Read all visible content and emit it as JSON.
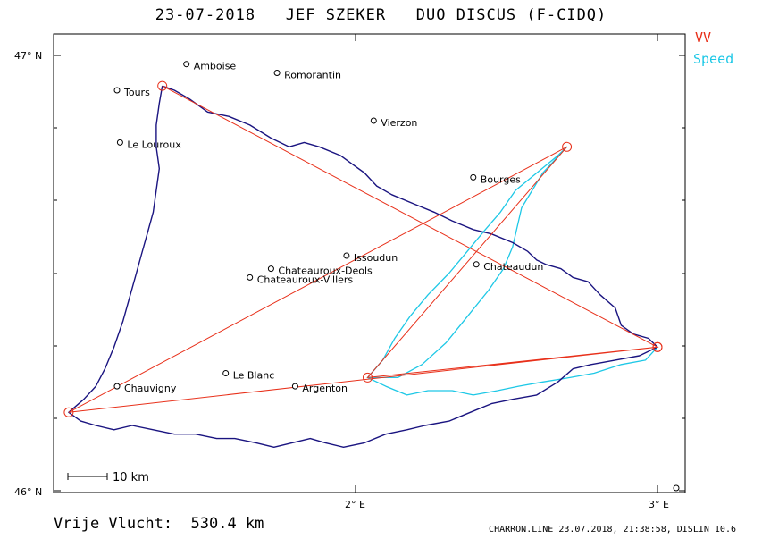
{
  "header": {
    "title": "23-07-2018   JEF SZEKER   DUO DISCUS (F-CIDQ)"
  },
  "legend": [
    {
      "label": "VV",
      "color": "#e8301a"
    },
    {
      "label": "Speed",
      "color": "#1ec8e6"
    }
  ],
  "axes": {
    "lat_top": "47° N",
    "lat_bottom": "46° N",
    "lon_2e": "2° E",
    "lon_3e": "3° E"
  },
  "scale_bar": {
    "label": "10 km"
  },
  "footer": {
    "distance": "Vrije Vlucht:  530.4 km",
    "info": "CHARRON.LINE 23.07.2018, 21:38:58, DISLIN 10.6"
  },
  "places": [
    {
      "name": "Amboise",
      "lon": 1.44,
      "lat": 46.98
    },
    {
      "name": "Romorantin",
      "lon": 1.74,
      "lat": 46.96
    },
    {
      "name": "Tours",
      "lon": 1.21,
      "lat": 46.92
    },
    {
      "name": "Vierzon",
      "lon": 2.06,
      "lat": 46.85
    },
    {
      "name": "Le Louroux",
      "lon": 1.22,
      "lat": 46.8
    },
    {
      "name": "Bourges",
      "lon": 2.39,
      "lat": 46.72
    },
    {
      "name": "Issoudun",
      "lon": 1.97,
      "lat": 46.54
    },
    {
      "name": "Chateaudun",
      "lon": 2.4,
      "lat": 46.52
    },
    {
      "name": "Chateauroux-Deols",
      "lon": 1.72,
      "lat": 46.51
    },
    {
      "name": "Chateauroux-Villers",
      "lon": 1.65,
      "lat": 46.49
    },
    {
      "name": "Le Blanc",
      "lon": 1.57,
      "lat": 46.27
    },
    {
      "name": "Argenton",
      "lon": 1.8,
      "lat": 46.24
    },
    {
      "name": "Chauvigny",
      "lon": 1.21,
      "lat": 46.24
    }
  ],
  "task": {
    "color": "#e8301a",
    "turnpoints": [
      {
        "lon": 1.36,
        "lat": 46.93
      },
      {
        "lon": 3.0,
        "lat": 46.33
      },
      {
        "lon": 1.05,
        "lat": 46.18
      },
      {
        "lon": 2.7,
        "lat": 46.79
      },
      {
        "lon": 2.04,
        "lat": 46.26
      },
      {
        "lon": 3.0,
        "lat": 46.33
      }
    ]
  },
  "tracks": {
    "main": {
      "color": "#1a1480",
      "points": [
        [
          1.36,
          46.93
        ],
        [
          1.4,
          46.92
        ],
        [
          1.45,
          46.9
        ],
        [
          1.51,
          46.87
        ],
        [
          1.58,
          46.86
        ],
        [
          1.65,
          46.84
        ],
        [
          1.72,
          46.81
        ],
        [
          1.78,
          46.79
        ],
        [
          1.83,
          46.8
        ],
        [
          1.88,
          46.79
        ],
        [
          1.95,
          46.77
        ],
        [
          1.99,
          46.75
        ],
        [
          2.03,
          46.73
        ],
        [
          2.07,
          46.7
        ],
        [
          2.12,
          46.68
        ],
        [
          2.19,
          46.66
        ],
        [
          2.26,
          46.64
        ],
        [
          2.32,
          46.62
        ],
        [
          2.39,
          46.6
        ],
        [
          2.45,
          46.59
        ],
        [
          2.52,
          46.57
        ],
        [
          2.57,
          46.55
        ],
        [
          2.6,
          46.53
        ],
        [
          2.63,
          46.52
        ],
        [
          2.68,
          46.51
        ],
        [
          2.72,
          46.49
        ],
        [
          2.77,
          46.48
        ],
        [
          2.81,
          46.45
        ],
        [
          2.86,
          46.42
        ],
        [
          2.88,
          46.38
        ],
        [
          2.92,
          46.36
        ],
        [
          2.97,
          46.35
        ],
        [
          3.0,
          46.33
        ],
        [
          2.94,
          46.31
        ],
        [
          2.86,
          46.3
        ],
        [
          2.78,
          46.29
        ],
        [
          2.72,
          46.28
        ],
        [
          2.67,
          46.25
        ],
        [
          2.6,
          46.22
        ],
        [
          2.52,
          46.21
        ],
        [
          2.45,
          46.2
        ],
        [
          2.38,
          46.18
        ],
        [
          2.31,
          46.16
        ],
        [
          2.23,
          46.15
        ],
        [
          2.17,
          46.14
        ],
        [
          2.1,
          46.13
        ],
        [
          2.03,
          46.11
        ],
        [
          1.96,
          46.1
        ],
        [
          1.9,
          46.11
        ],
        [
          1.85,
          46.12
        ],
        [
          1.79,
          46.11
        ],
        [
          1.73,
          46.1
        ],
        [
          1.67,
          46.11
        ],
        [
          1.6,
          46.12
        ],
        [
          1.54,
          46.12
        ],
        [
          1.47,
          46.13
        ],
        [
          1.4,
          46.13
        ],
        [
          1.33,
          46.14
        ],
        [
          1.26,
          46.15
        ],
        [
          1.2,
          46.14
        ],
        [
          1.14,
          46.15
        ],
        [
          1.09,
          46.16
        ],
        [
          1.05,
          46.18
        ],
        [
          1.1,
          46.21
        ],
        [
          1.14,
          46.24
        ],
        [
          1.17,
          46.28
        ],
        [
          1.2,
          46.33
        ],
        [
          1.23,
          46.39
        ],
        [
          1.25,
          46.44
        ],
        [
          1.27,
          46.49
        ],
        [
          1.29,
          46.54
        ],
        [
          1.31,
          46.59
        ],
        [
          1.33,
          46.64
        ],
        [
          1.34,
          46.69
        ],
        [
          1.35,
          46.74
        ],
        [
          1.34,
          46.79
        ],
        [
          1.34,
          46.84
        ],
        [
          1.35,
          46.89
        ],
        [
          1.36,
          46.93
        ]
      ]
    },
    "speed": {
      "color": "#1ec8e6",
      "points": [
        [
          3.0,
          46.33
        ],
        [
          2.96,
          46.3
        ],
        [
          2.88,
          46.29
        ],
        [
          2.79,
          46.27
        ],
        [
          2.71,
          46.26
        ],
        [
          2.62,
          46.25
        ],
        [
          2.54,
          46.24
        ],
        [
          2.47,
          46.23
        ],
        [
          2.39,
          46.22
        ],
        [
          2.32,
          46.23
        ],
        [
          2.24,
          46.23
        ],
        [
          2.17,
          46.22
        ],
        [
          2.1,
          46.24
        ],
        [
          2.04,
          46.26
        ],
        [
          2.09,
          46.3
        ],
        [
          2.13,
          46.35
        ],
        [
          2.18,
          46.4
        ],
        [
          2.24,
          46.45
        ],
        [
          2.31,
          46.5
        ],
        [
          2.37,
          46.55
        ],
        [
          2.43,
          46.6
        ],
        [
          2.48,
          46.64
        ],
        [
          2.53,
          46.69
        ],
        [
          2.6,
          46.73
        ],
        [
          2.67,
          46.77
        ],
        [
          2.7,
          46.79
        ],
        [
          2.62,
          46.73
        ],
        [
          2.55,
          46.65
        ],
        [
          2.52,
          46.56
        ],
        [
          2.49,
          46.51
        ],
        [
          2.44,
          46.46
        ],
        [
          2.37,
          46.4
        ],
        [
          2.3,
          46.34
        ],
        [
          2.22,
          46.29
        ],
        [
          2.14,
          46.26
        ],
        [
          2.04,
          46.26
        ]
      ]
    }
  }
}
